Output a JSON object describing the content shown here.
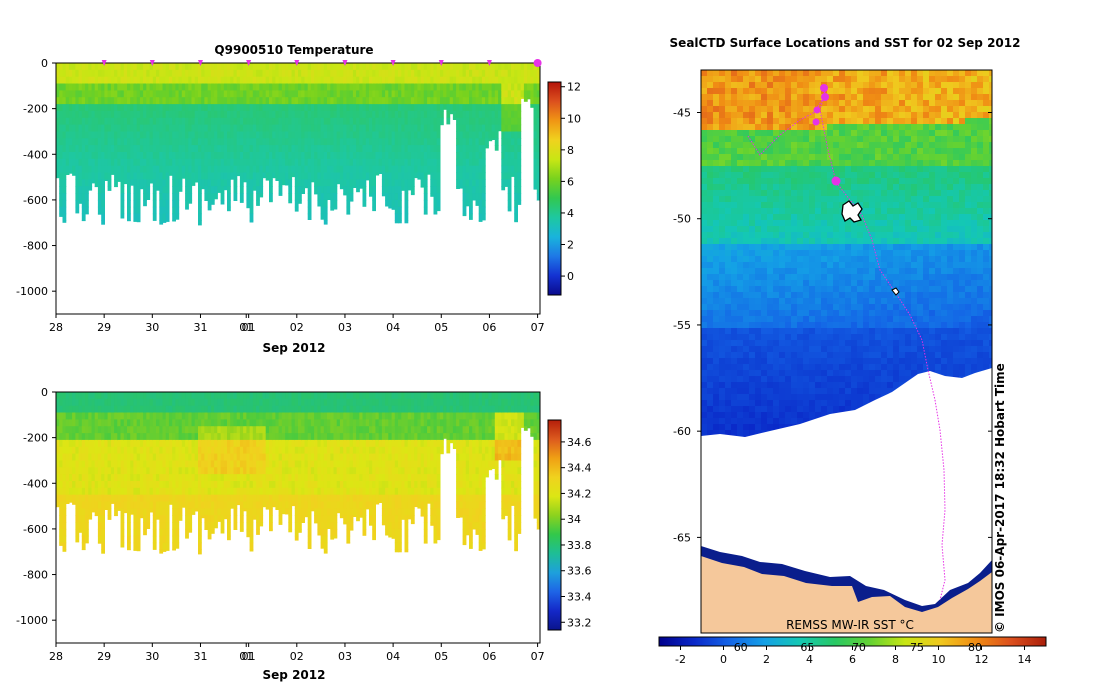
{
  "colors": {
    "temp_scale": [
      "#0a0a8c",
      "#1432d2",
      "#1e78e6",
      "#19b4dc",
      "#1ec8a0",
      "#32c850",
      "#78d21e",
      "#c8e614",
      "#f0d21e",
      "#f09614",
      "#dc501e",
      "#b4140a"
    ],
    "sst_scale": [
      "#00008c",
      "#0a28c8",
      "#1464e6",
      "#14a0e6",
      "#14c8b4",
      "#28c864",
      "#64d232",
      "#c8e614",
      "#f0c81e",
      "#f08c14",
      "#dc501e",
      "#aa1e0a"
    ],
    "salt_scale": [
      "#0a148c",
      "#1428c8",
      "#1e64e6",
      "#1ea0dc",
      "#1ebe96",
      "#32c84b",
      "#8cd21e",
      "#dce614",
      "#f0d21e",
      "#f0a014",
      "#dc5a1e",
      "#b41e0a"
    ],
    "land": "#f5c89b",
    "track": "#e632e6",
    "frame": "#000000"
  },
  "chart_data": [
    {
      "type": "heatmap",
      "title": "Q9900510  Temperature",
      "xlabel": "Sep 2012",
      "x_tick_labels": [
        "28",
        "29",
        "30",
        "31",
        "01",
        "01",
        "02",
        "03",
        "04",
        "05",
        "06",
        "07"
      ],
      "x_tick_days": [
        0,
        1,
        2,
        3,
        3.95,
        4,
        5,
        6,
        7,
        8,
        9,
        10
      ],
      "y_tick_labels": [
        "0",
        "-200",
        "-400",
        "-600",
        "-800",
        "-1000"
      ],
      "y_ticks": [
        0,
        -200,
        -400,
        -600,
        -800,
        -1000
      ],
      "xlim": [
        0,
        10.05
      ],
      "ylim": [
        -1100,
        0
      ],
      "colorbar_tick_labels": [
        "12",
        "10",
        "8",
        "6",
        "4",
        "2",
        "0"
      ],
      "colorbar_ticks": [
        12,
        10,
        8,
        6,
        4,
        2,
        0
      ],
      "colorbar_range": [
        -1.2,
        12.3
      ],
      "profile_days": [
        1,
        2,
        3,
        4,
        5,
        6,
        7,
        8,
        9,
        10
      ],
      "profile_depth_range": [
        -800,
        0
      ],
      "profile_value_range": [
        2.3,
        6.4
      ]
    },
    {
      "type": "heatmap",
      "title": "",
      "xlabel": "Sep 2012",
      "x_tick_labels": [
        "28",
        "29",
        "30",
        "31",
        "01",
        "01",
        "02",
        "03",
        "04",
        "05",
        "06",
        "07"
      ],
      "x_tick_days": [
        0,
        1,
        2,
        3,
        3.95,
        4,
        5,
        6,
        7,
        8,
        9,
        10
      ],
      "y_tick_labels": [
        "0",
        "-200",
        "-400",
        "-600",
        "-800",
        "-1000"
      ],
      "y_ticks": [
        0,
        -200,
        -400,
        -600,
        -800,
        -1000
      ],
      "xlim": [
        0,
        10.05
      ],
      "ylim": [
        -1100,
        0
      ],
      "colorbar_tick_labels": [
        "34.6",
        "34.4",
        "34.2",
        "34",
        "33.8",
        "33.6",
        "33.4",
        "33.2"
      ],
      "colorbar_ticks": [
        34.6,
        34.4,
        34.2,
        34,
        33.8,
        33.6,
        33.4,
        33.2
      ],
      "colorbar_range": [
        33.14,
        34.77
      ],
      "profile_value_range": [
        33.85,
        34.3
      ]
    },
    {
      "type": "heatmap",
      "title": "SealCTD Surface Locations and SST for 02 Sep 2012",
      "y_tick_labels": [
        "-45",
        "-50",
        "-55",
        "-60",
        "-65"
      ],
      "y_ticks": [
        -45,
        -50,
        -55,
        -60,
        -65
      ],
      "lat_range": [
        -43,
        -69.5
      ],
      "colorbar_tick_labels": [
        "-2",
        "0",
        "2",
        "4",
        "6",
        "8",
        "10",
        "12",
        "14"
      ],
      "colorbar_ticks": [
        -2,
        0,
        2,
        4,
        6,
        8,
        10,
        12,
        14
      ],
      "colorbar_range": [
        -3,
        15
      ],
      "fahrenheit_labels": [
        "60",
        "65",
        "70",
        "75",
        "80"
      ],
      "fahrenheit_positions_c": [
        0.8,
        3.9,
        6.3,
        9.0,
        11.7
      ],
      "sst_range": [
        -1.5,
        14
      ],
      "credit": "© IMOS 06-Apr-2017 18:32 Hobart Time",
      "product": "REMSS MW-IR SST °C"
    }
  ]
}
